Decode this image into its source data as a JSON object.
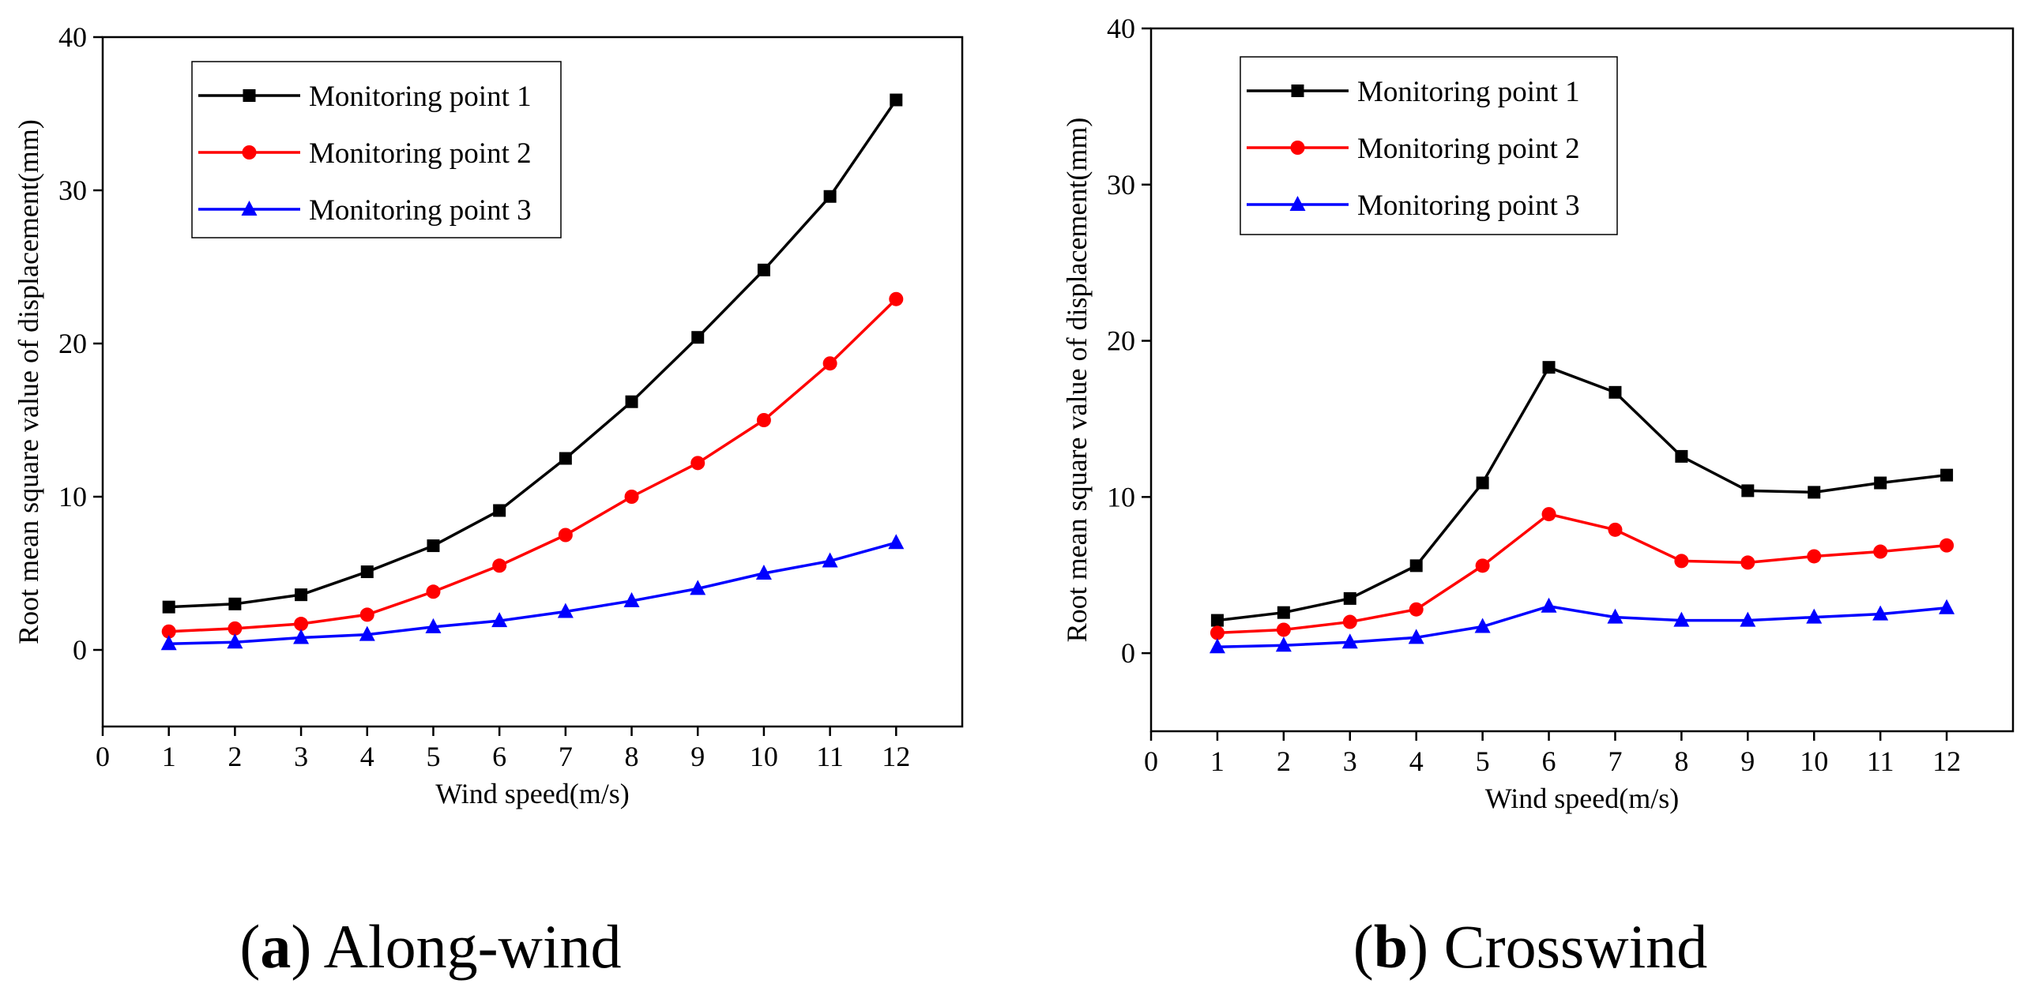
{
  "figure": {
    "captions": [
      {
        "paren_open": "(",
        "letter": "a",
        "paren_close": ")",
        "text": " Along-wind"
      },
      {
        "paren_open": "(",
        "letter": "b",
        "paren_close": ")",
        "text": " Crosswind"
      }
    ]
  },
  "chart_data": [
    {
      "type": "line",
      "title": "Along-wind",
      "xlabel": "Wind speed(m/s)",
      "ylabel": "Root mean square value of displacement(mm)",
      "xlim": [
        0,
        13
      ],
      "ylim": [
        -5,
        40
      ],
      "xticks": [
        0,
        1,
        2,
        3,
        4,
        5,
        6,
        7,
        8,
        9,
        10,
        11,
        12
      ],
      "yticks": [
        0,
        10,
        20,
        30,
        40
      ],
      "legend_position": "top-left",
      "x": [
        1,
        2,
        3,
        4,
        5,
        6,
        7,
        8,
        9,
        10,
        11,
        12
      ],
      "series": [
        {
          "name": "Monitoring point 1",
          "color": "#000000",
          "marker": "square",
          "values": [
            2.8,
            3.0,
            3.6,
            5.1,
            6.8,
            9.1,
            12.5,
            16.2,
            20.4,
            24.8,
            29.6,
            35.9
          ]
        },
        {
          "name": "Monitoring point 2",
          "color": "#ff0000",
          "marker": "circle",
          "values": [
            1.2,
            1.4,
            1.7,
            2.3,
            3.8,
            5.5,
            7.5,
            10.0,
            12.2,
            15.0,
            18.7,
            22.9
          ]
        },
        {
          "name": "Monitoring point 3",
          "color": "#0000ff",
          "marker": "triangle",
          "values": [
            0.4,
            0.5,
            0.8,
            1.0,
            1.5,
            1.9,
            2.5,
            3.2,
            4.0,
            5.0,
            5.8,
            7.0
          ]
        }
      ]
    },
    {
      "type": "line",
      "title": "Crosswind",
      "xlabel": "Wind speed(m/s)",
      "ylabel": "Root mean square value of displacement(mm)",
      "xlim": [
        0,
        13
      ],
      "ylim": [
        -5,
        40
      ],
      "xticks": [
        0,
        1,
        2,
        3,
        4,
        5,
        6,
        7,
        8,
        9,
        10,
        11,
        12
      ],
      "yticks": [
        0,
        10,
        20,
        30,
        40
      ],
      "legend_position": "top-left",
      "x": [
        1,
        2,
        3,
        4,
        5,
        6,
        7,
        8,
        9,
        10,
        11,
        12
      ],
      "series": [
        {
          "name": "Monitoring point 1",
          "color": "#000000",
          "marker": "square",
          "values": [
            2.1,
            2.6,
            3.5,
            5.6,
            10.9,
            18.3,
            16.7,
            12.6,
            10.4,
            10.3,
            10.9,
            11.4
          ]
        },
        {
          "name": "Monitoring point 2",
          "color": "#ff0000",
          "marker": "circle",
          "values": [
            1.3,
            1.5,
            2.0,
            2.8,
            5.6,
            8.9,
            7.9,
            5.9,
            5.8,
            6.2,
            6.5,
            6.9
          ]
        },
        {
          "name": "Monitoring point 3",
          "color": "#0000ff",
          "marker": "triangle",
          "values": [
            0.4,
            0.5,
            0.7,
            1.0,
            1.7,
            3.0,
            2.3,
            2.1,
            2.1,
            2.3,
            2.5,
            2.9
          ]
        }
      ]
    }
  ]
}
